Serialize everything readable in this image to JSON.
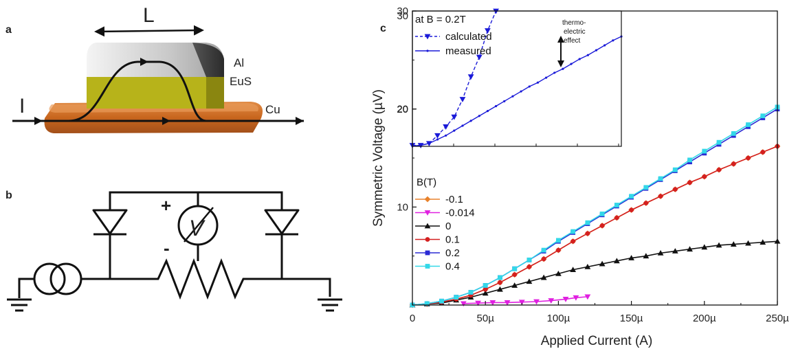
{
  "panels": {
    "a": "a",
    "b": "b",
    "c": "c"
  },
  "panel_a": {
    "length_label": "L",
    "current_label": "I",
    "layers": {
      "top": "Al",
      "middle": "EuS",
      "bottom": "Cu"
    }
  },
  "panel_b": {
    "plus": "+",
    "minus": "-",
    "meter_symbol": "V"
  },
  "chart_data": [
    {
      "type": "line",
      "xlabel": "Applied Current (A)",
      "ylabel": "Symmetric Voltage (µV)",
      "xlim": [
        0,
        250
      ],
      "ylim": [
        0,
        30
      ],
      "x_ticks": [
        0,
        50,
        100,
        150,
        200,
        250
      ],
      "x_tick_labels": [
        "0",
        "50µ",
        "100µ",
        "150µ",
        "200µ",
        "250µ"
      ],
      "y_ticks": [
        10,
        20,
        30
      ],
      "y_tick_labels": [
        "10",
        "20",
        "30"
      ],
      "legend_title": "B(T)",
      "legend_position": "left",
      "series": [
        {
          "name": "-0.1",
          "color": "#e8812b",
          "marker": "diamond",
          "x": [
            0,
            10,
            20,
            30,
            40,
            50,
            60,
            70,
            80,
            90,
            100,
            110,
            120,
            130,
            140,
            150,
            160,
            170,
            180,
            190,
            200,
            210,
            220,
            230,
            240,
            250
          ],
          "y": [
            0,
            0.1,
            0.3,
            0.6,
            1.0,
            1.6,
            2.3,
            3.1,
            3.9,
            4.7,
            5.6,
            6.5,
            7.3,
            8.1,
            8.9,
            9.7,
            10.4,
            11.1,
            11.8,
            12.5,
            13.1,
            13.8,
            14.4,
            15.0,
            15.6,
            16.2
          ]
        },
        {
          "name": "-0.014",
          "color": "#e020e0",
          "marker": "triangle-down",
          "x": [
            35,
            45,
            55,
            65,
            75,
            85,
            95,
            105,
            112,
            120
          ],
          "y": [
            0.15,
            0.2,
            0.25,
            0.25,
            0.3,
            0.35,
            0.45,
            0.6,
            0.75,
            0.85
          ]
        },
        {
          "name": "0",
          "color": "#111111",
          "marker": "triangle-up",
          "x": [
            0,
            10,
            20,
            30,
            40,
            50,
            60,
            70,
            80,
            90,
            100,
            110,
            120,
            130,
            140,
            150,
            160,
            170,
            180,
            190,
            200,
            210,
            220,
            230,
            240,
            250
          ],
          "y": [
            0,
            0.1,
            0.2,
            0.5,
            0.8,
            1.2,
            1.6,
            2.0,
            2.4,
            2.8,
            3.2,
            3.6,
            3.9,
            4.2,
            4.5,
            4.8,
            5.0,
            5.3,
            5.5,
            5.7,
            5.9,
            6.1,
            6.2,
            6.3,
            6.4,
            6.5
          ]
        },
        {
          "name": "0.1",
          "color": "#d42020",
          "marker": "circle",
          "x": [
            0,
            10,
            20,
            30,
            40,
            50,
            60,
            70,
            80,
            90,
            100,
            110,
            120,
            130,
            140,
            150,
            160,
            170,
            180,
            190,
            200,
            210,
            220,
            230,
            240,
            250
          ],
          "y": [
            0,
            0.1,
            0.3,
            0.6,
            1.0,
            1.6,
            2.3,
            3.1,
            3.9,
            4.7,
            5.6,
            6.5,
            7.3,
            8.1,
            8.9,
            9.7,
            10.4,
            11.1,
            11.8,
            12.5,
            13.1,
            13.8,
            14.4,
            15.0,
            15.6,
            16.2
          ]
        },
        {
          "name": "0.2",
          "color": "#2a2ad4",
          "marker": "square",
          "x": [
            0,
            10,
            20,
            30,
            40,
            50,
            60,
            70,
            80,
            90,
            100,
            110,
            120,
            130,
            140,
            150,
            160,
            170,
            180,
            190,
            200,
            210,
            220,
            230,
            240,
            250
          ],
          "y": [
            0,
            0.15,
            0.4,
            0.8,
            1.3,
            2.0,
            2.8,
            3.7,
            4.6,
            5.5,
            6.5,
            7.4,
            8.3,
            9.2,
            10.1,
            11.0,
            11.9,
            12.8,
            13.7,
            14.6,
            15.5,
            16.4,
            17.3,
            18.2,
            19.1,
            20.0
          ]
        },
        {
          "name": "0.4",
          "color": "#33d8e8",
          "marker": "square",
          "x": [
            0,
            10,
            20,
            30,
            40,
            50,
            60,
            70,
            80,
            90,
            100,
            110,
            120,
            130,
            140,
            150,
            160,
            170,
            180,
            190,
            200,
            210,
            220,
            230,
            240,
            250
          ],
          "y": [
            0,
            0.15,
            0.4,
            0.8,
            1.3,
            2.0,
            2.8,
            3.7,
            4.6,
            5.6,
            6.6,
            7.5,
            8.4,
            9.3,
            10.2,
            11.1,
            12.0,
            12.9,
            13.8,
            14.8,
            15.7,
            16.6,
            17.5,
            18.4,
            19.3,
            20.2
          ]
        }
      ]
    },
    {
      "type": "line",
      "inset": true,
      "title": "at B = 0.2T",
      "ylim": [
        16.2,
        30
      ],
      "xlim": [
        0,
        250
      ],
      "legend_position": "top-left",
      "annotation": "thermo-\nelectric\neffect",
      "annotation_lines": [
        "thermo-",
        "electric",
        "effect"
      ],
      "series": [
        {
          "name": "calculated",
          "color": "#1a1ad8",
          "marker": "triangle-down",
          "dashed": true,
          "x": [
            0,
            10,
            20,
            30,
            40,
            50,
            60,
            70,
            80,
            90,
            100
          ],
          "y": [
            16.3,
            16.3,
            16.5,
            17.3,
            18.2,
            19.2,
            21.0,
            23.3,
            25.3,
            28.0,
            30.0
          ]
        },
        {
          "name": "measured",
          "color": "#1a1ad8",
          "marker": "dot",
          "dashed": false,
          "x": [
            0,
            10,
            20,
            30,
            40,
            50,
            60,
            70,
            80,
            90,
            100,
            110,
            120,
            130,
            140,
            150,
            160,
            170,
            180,
            190,
            200,
            210,
            220,
            230,
            240,
            250
          ],
          "y": [
            16.25,
            16.3,
            16.5,
            16.9,
            17.3,
            17.8,
            18.3,
            18.8,
            19.3,
            19.8,
            20.3,
            20.8,
            21.3,
            21.8,
            22.3,
            22.7,
            23.2,
            23.7,
            24.1,
            24.6,
            25.1,
            25.5,
            26.0,
            26.5,
            27.0,
            27.4
          ]
        }
      ]
    }
  ]
}
